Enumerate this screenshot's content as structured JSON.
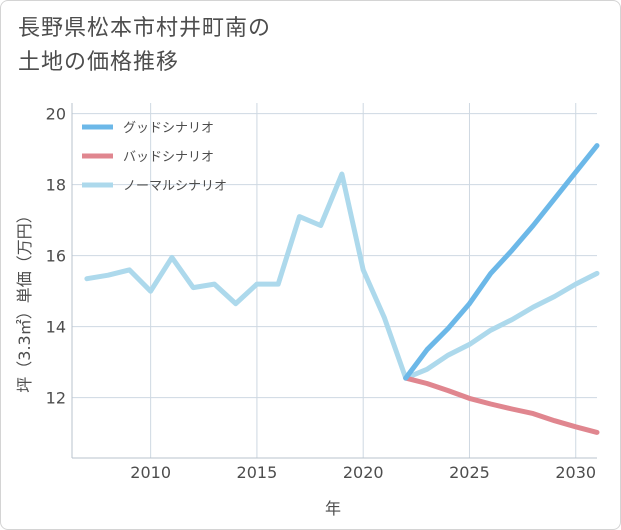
{
  "title_line1": "長野県松本市村井町南の",
  "title_line2": "土地の価格推移",
  "chart_data": {
    "type": "line",
    "xlabel": "年",
    "ylabel": "坪（3.3㎡）単価（万円）",
    "xlim": [
      2006.3,
      2031
    ],
    "ylim": [
      10.3,
      20.3
    ],
    "xticks": [
      2010,
      2015,
      2020,
      2025,
      2030
    ],
    "yticks": [
      12,
      14,
      16,
      18,
      20
    ],
    "grid": true,
    "legend_position": "top-left",
    "series": [
      {
        "name": "グッドシナリオ",
        "color": "#6cb8e8",
        "x": [
          2022,
          2023,
          2024,
          2025,
          2026,
          2027,
          2028,
          2029,
          2030,
          2031
        ],
        "y": [
          12.55,
          13.35,
          13.95,
          14.65,
          15.5,
          16.15,
          16.85,
          17.6,
          18.35,
          19.1
        ]
      },
      {
        "name": "バッドシナリオ",
        "color": "#e0868f",
        "x": [
          2022,
          2023,
          2024,
          2025,
          2026,
          2027,
          2028,
          2029,
          2030,
          2031
        ],
        "y": [
          12.55,
          12.4,
          12.2,
          11.98,
          11.82,
          11.68,
          11.55,
          11.35,
          11.18,
          11.02
        ]
      },
      {
        "name": "ノーマルシナリオ",
        "color": "#add9ec",
        "x": [
          2007,
          2008,
          2009,
          2010,
          2011,
          2012,
          2013,
          2014,
          2015,
          2016,
          2017,
          2018,
          2019,
          2020,
          2021,
          2022,
          2023,
          2024,
          2025,
          2026,
          2027,
          2028,
          2029,
          2030,
          2031
        ],
        "y": [
          15.35,
          15.45,
          15.6,
          15.0,
          15.95,
          15.1,
          15.2,
          14.65,
          15.2,
          15.2,
          17.1,
          16.85,
          18.3,
          15.6,
          14.25,
          12.55,
          12.8,
          13.2,
          13.5,
          13.9,
          14.2,
          14.55,
          14.85,
          15.2,
          15.5
        ]
      }
    ]
  }
}
